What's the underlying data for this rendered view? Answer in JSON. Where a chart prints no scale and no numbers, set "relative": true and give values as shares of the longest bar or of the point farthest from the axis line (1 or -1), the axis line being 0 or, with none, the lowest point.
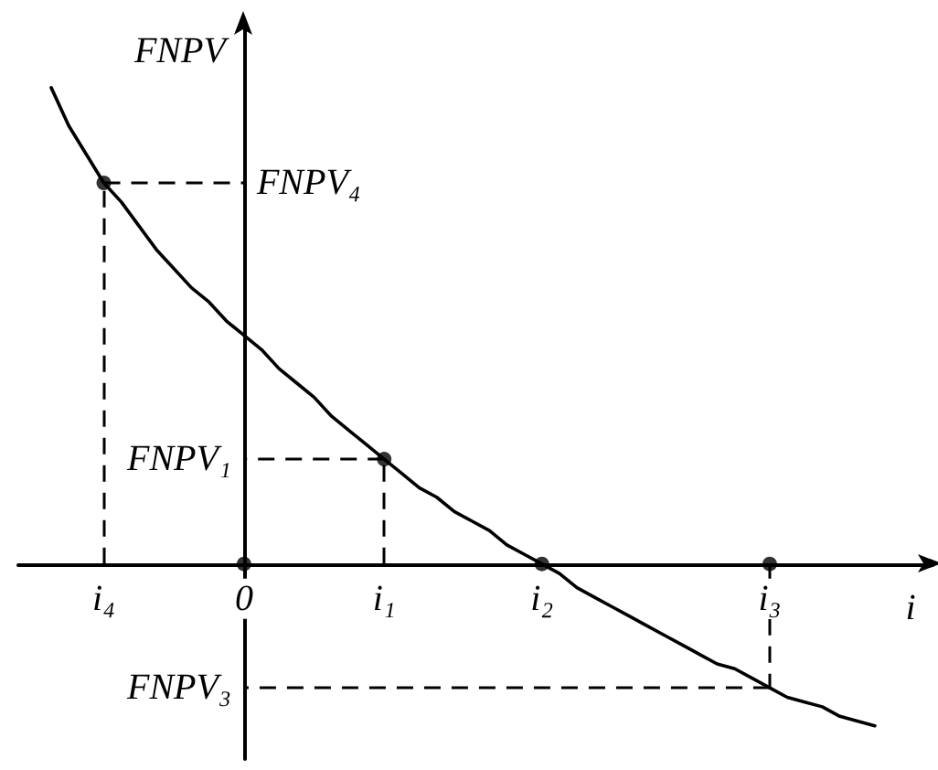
{
  "chart_data": {
    "type": "line",
    "relative": true,
    "ylabel": "FNPV",
    "xlabel": "i",
    "categories": [
      null,
      null,
      null,
      "i₄",
      null,
      null,
      null,
      null,
      null,
      null,
      null,
      "0",
      null,
      null,
      null,
      null,
      null,
      null,
      null,
      "i₁",
      null,
      null,
      null,
      null,
      null,
      null,
      null,
      null,
      "i₂",
      null,
      null,
      null,
      null,
      null,
      null,
      null,
      null,
      null,
      null,
      null,
      null,
      "i₃",
      null,
      null,
      null,
      null,
      null,
      null
    ],
    "series": [
      {
        "color": "#000000",
        "marker": "none",
        "values": [
          1,
          0.92,
          0.86,
          0.8,
          0.76,
          0.71,
          0.66,
          0.62,
          0.58,
          0.55,
          0.51,
          0.48,
          0.45,
          0.41,
          0.38,
          0.35,
          0.31,
          0.28,
          0.25,
          0.22,
          0.19,
          0.16,
          0.14,
          0.11,
          0.09,
          0.07,
          0.04,
          0.02,
          0,
          -0.02,
          -0.05,
          -0.07,
          -0.09,
          -0.11,
          -0.13,
          -0.15,
          -0.17,
          -0.19,
          -0.21,
          -0.22,
          -0.24,
          -0.26,
          -0.28,
          -0.29,
          -0.3,
          -0.32,
          -0.33,
          -0.34
        ]
      },
      {
        "type": "lollipop",
        "color": "#000000",
        "marker": "circle",
        "line_style": "dashed",
        "x": [
          "i₄",
          "0",
          "i₁",
          "i₂",
          "i₃"
        ],
        "values": [
          0.8,
          0,
          0.22,
          0,
          0
        ]
      }
    ],
    "ref_lines": [
      {
        "axis": "y",
        "value": 0.8,
        "label": "FNPV₄",
        "color": "#000000",
        "line_style": "dashed"
      },
      {
        "axis": "y",
        "value": 0.22,
        "label": "FNPV₁",
        "color": "#000000",
        "line_style": "dashed"
      },
      {
        "axis": "y",
        "value": -0.26,
        "label": "FNPV₃",
        "color": "#000000",
        "line_style": "dashed"
      },
      {
        "axis": "x",
        "value": "i₃",
        "color": "#000000",
        "line_style": "dashed"
      }
    ],
    "line_style": "solid"
  }
}
